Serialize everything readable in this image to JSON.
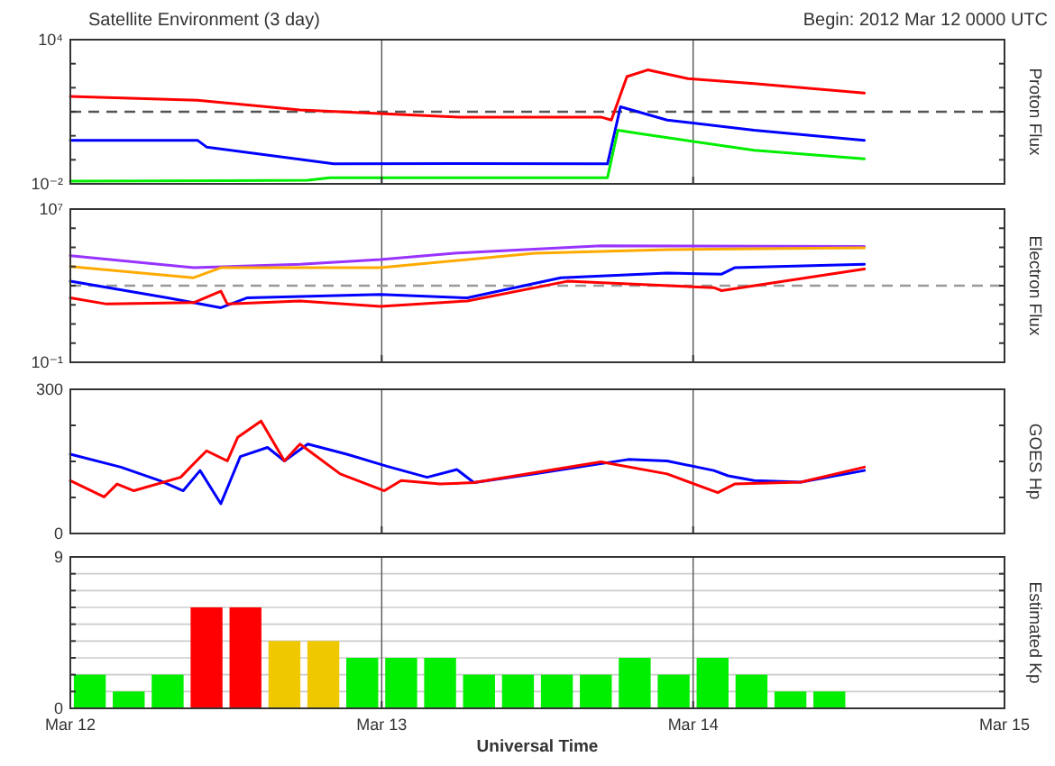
{
  "chart_data": [
    {
      "type": "line",
      "title": "Satellite Environment (3 day)",
      "annotations": [
        "Begin: 2012 Mar 12 0000 UTC"
      ],
      "ylabel": "Proton Flux",
      "log": "y",
      "grid": "x",
      "tick_labels": "y",
      "xlim": [
        "2012-03-12",
        "2012-03-15"
      ],
      "xticks": [
        {
          "value": "2012-03-12",
          "label": null
        },
        {
          "value": "2012-03-13",
          "label": null
        },
        {
          "value": "2012-03-14",
          "label": null
        },
        {
          "value": "2012-03-15",
          "label": null
        }
      ],
      "ylim": [
        0.01,
        10000
      ],
      "yticks": [
        {
          "value": 0.01,
          "label": "10⁻²"
        },
        {
          "value": 0.1,
          "label": null
        },
        {
          "value": 1,
          "label": null
        },
        {
          "value": 10,
          "label": null
        },
        {
          "value": 100,
          "label": null
        },
        {
          "value": 1000,
          "label": null
        },
        {
          "value": 10000,
          "label": "10⁴"
        }
      ],
      "ref_lines": [
        {
          "axis": "y",
          "value": 10,
          "color": "#555555",
          "line_style": "dashed"
        }
      ],
      "series": [
        {
          "color": "#ff0000",
          "x": [
            "2012-03-12T00:00",
            "2012-03-12T09:48",
            "2012-03-12T17:42",
            "2012-03-13T06:00",
            "2012-03-13T16:54",
            "2012-03-13T17:42",
            "2012-03-13T18:54",
            "2012-03-13T20:30",
            "2012-03-13T23:36",
            "2012-03-14T04:42",
            "2012-03-14T13:12"
          ],
          "values": [
            43,
            30,
            12,
            6,
            6,
            4.5,
            290,
            550,
            240,
            150,
            60
          ]
        },
        {
          "color": "#0000ff",
          "x": [
            "2012-03-12T00:00",
            "2012-03-12T09:48",
            "2012-03-12T10:30",
            "2012-03-12T20:18",
            "2012-03-13T06:00",
            "2012-03-13T17:24",
            "2012-03-13T18:24",
            "2012-03-13T22:00",
            "2012-03-14T04:42",
            "2012-03-14T13:12"
          ],
          "values": [
            0.65,
            0.65,
            0.34,
            0.068,
            0.07,
            0.068,
            16,
            4.5,
            1.7,
            0.65
          ]
        },
        {
          "color": "#00ee00",
          "x": [
            "2012-03-12T00:00",
            "2012-03-12T18:18",
            "2012-03-12T20:00",
            "2012-03-13T17:24",
            "2012-03-13T18:12",
            "2012-03-13T20:00",
            "2012-03-14T04:42",
            "2012-03-14T13:12"
          ],
          "values": [
            0.013,
            0.014,
            0.018,
            0.018,
            1.7,
            1.2,
            0.25,
            0.11
          ]
        }
      ]
    },
    {
      "type": "line",
      "ylabel": "Electron Flux",
      "log": "y",
      "grid": "x",
      "tick_labels": "y",
      "xlim": [
        "2012-03-12",
        "2012-03-15"
      ],
      "xticks": [
        {
          "value": "2012-03-12",
          "label": null
        },
        {
          "value": "2012-03-13",
          "label": null
        },
        {
          "value": "2012-03-14",
          "label": null
        },
        {
          "value": "2012-03-15",
          "label": null
        }
      ],
      "ylim": [
        0.1,
        10000000
      ],
      "yticks": [
        {
          "value": 0.1,
          "label": "10⁻¹"
        },
        {
          "value": 1,
          "label": null
        },
        {
          "value": 10,
          "label": null
        },
        {
          "value": 100,
          "label": null
        },
        {
          "value": 1000,
          "label": null
        },
        {
          "value": 10000,
          "label": null
        },
        {
          "value": 100000,
          "label": null
        },
        {
          "value": 1000000,
          "label": null
        },
        {
          "value": 10000000,
          "label": "10⁷"
        }
      ],
      "ref_lines": [
        {
          "axis": "y",
          "value": 1000,
          "color": "#999999",
          "line_style": "dashed"
        }
      ],
      "series": [
        {
          "color": "#9933ff",
          "x": [
            "2012-03-12T00:00",
            "2012-03-12T09:30",
            "2012-03-12T17:42",
            "2012-03-12T23:54",
            "2012-03-13T05:36",
            "2012-03-13T16:54",
            "2012-03-14T13:12"
          ],
          "values": [
            37000,
            8700,
            13000,
            23000,
            50000,
            120000,
            110000
          ]
        },
        {
          "color": "#ffaa00",
          "x": [
            "2012-03-12T00:00",
            "2012-03-12T09:30",
            "2012-03-12T11:36",
            "2012-03-12T23:54",
            "2012-03-13T11:48",
            "2012-03-13T22:00",
            "2012-03-14T13:12"
          ],
          "values": [
            10000,
            2600,
            8700,
            8700,
            50000,
            76000,
            95000
          ]
        },
        {
          "color": "#0000ff",
          "x": [
            "2012-03-12T00:00",
            "2012-03-12T07:30",
            "2012-03-12T11:36",
            "2012-03-12T13:36",
            "2012-03-12T23:54",
            "2012-03-13T06:36",
            "2012-03-13T13:48",
            "2012-03-13T22:00",
            "2012-03-14T02:12",
            "2012-03-14T03:12",
            "2012-03-14T13:12"
          ],
          "values": [
            1700,
            230,
            71,
            230,
            350,
            230,
            2600,
            4600,
            4000,
            8700,
            13000
          ]
        },
        {
          "color": "#ff0000",
          "x": [
            "2012-03-12T00:00",
            "2012-03-12T02:48",
            "2012-03-12T09:30",
            "2012-03-12T11:36",
            "2012-03-12T12:06",
            "2012-03-12T17:42",
            "2012-03-12T23:54",
            "2012-03-13T06:36",
            "2012-03-13T14:18",
            "2012-03-14T01:36",
            "2012-03-14T02:12",
            "2012-03-14T13:12"
          ],
          "values": [
            230,
            110,
            130,
            520,
            110,
            160,
            83,
            160,
            1700,
            790,
            550,
            7400
          ]
        }
      ]
    },
    {
      "type": "line",
      "ylabel": "GOES Hp",
      "grid": "x",
      "tick_labels": "y",
      "xlim": [
        "2012-03-12",
        "2012-03-15"
      ],
      "xticks": [
        {
          "value": "2012-03-12",
          "label": null
        },
        {
          "value": "2012-03-13",
          "label": null
        },
        {
          "value": "2012-03-14",
          "label": null
        },
        {
          "value": "2012-03-15",
          "label": null
        }
      ],
      "ylim": [
        0,
        300
      ],
      "yticks": [
        0,
        {
          "value": 75,
          "label": null
        },
        {
          "value": 150,
          "label": null
        },
        {
          "value": 225,
          "label": null
        },
        300
      ],
      "series": [
        {
          "color": "#0000ff",
          "x": [
            "2012-03-12T00:00",
            "2012-03-12T03:54",
            "2012-03-12T06:54",
            "2012-03-12T08:42",
            "2012-03-12T10:00",
            "2012-03-12T11:36",
            "2012-03-12T13:06",
            "2012-03-12T15:12",
            "2012-03-12T16:30",
            "2012-03-12T18:18",
            "2012-03-12T21:18",
            "2012-03-13T00:24",
            "2012-03-13T03:30",
            "2012-03-13T05:48",
            "2012-03-13T07:06",
            "2012-03-13T11:48",
            "2012-03-13T19:00",
            "2012-03-13T22:00",
            "2012-03-14T01:36",
            "2012-03-14T02:42",
            "2012-03-14T04:42",
            "2012-03-14T08:18",
            "2012-03-14T13:12"
          ],
          "values": [
            165,
            138,
            110,
            89,
            131,
            62,
            160,
            179,
            151,
            186,
            165,
            140,
            117,
            133,
            106,
            124,
            154,
            151,
            131,
            120,
            110,
            107,
            131
          ]
        },
        {
          "color": "#ff0000",
          "x": [
            "2012-03-12T00:00",
            "2012-03-12T02:36",
            "2012-03-12T03:36",
            "2012-03-12T04:54",
            "2012-03-12T08:30",
            "2012-03-12T09:30",
            "2012-03-12T10:30",
            "2012-03-12T12:06",
            "2012-03-12T12:54",
            "2012-03-12T14:42",
            "2012-03-12T16:30",
            "2012-03-12T17:42",
            "2012-03-12T20:48",
            "2012-03-13T00:12",
            "2012-03-13T01:30",
            "2012-03-13T04:30",
            "2012-03-13T07:06",
            "2012-03-13T16:54",
            "2012-03-13T22:00",
            "2012-03-14T01:54",
            "2012-03-14T03:12",
            "2012-03-14T08:18",
            "2012-03-14T13:12"
          ],
          "values": [
            110,
            76,
            103,
            89,
            117,
            145,
            172,
            151,
            200,
            234,
            151,
            186,
            124,
            89,
            110,
            103,
            106,
            149,
            124,
            85,
            103,
            107,
            138
          ]
        }
      ]
    },
    {
      "type": "bar",
      "ylabel": "Estimated Kp",
      "xlabel": "Universal Time",
      "grid": true,
      "xlim": [
        "2012-03-12",
        "2012-03-15"
      ],
      "xticks": [
        {
          "value": "2012-03-12",
          "label": "Mar 12"
        },
        {
          "value": "2012-03-13",
          "label": "Mar 13"
        },
        {
          "value": "2012-03-14",
          "label": "Mar 14"
        },
        {
          "value": "2012-03-15",
          "label": "Mar 15"
        }
      ],
      "ylim": [
        0,
        9
      ],
      "yticks": [
        0,
        {
          "value": 1,
          "label": null
        },
        {
          "value": 2,
          "label": null
        },
        {
          "value": 3,
          "label": null
        },
        {
          "value": 4,
          "label": null
        },
        {
          "value": 5,
          "label": null
        },
        {
          "value": 6,
          "label": null
        },
        {
          "value": 7,
          "label": null
        },
        {
          "value": 8,
          "label": null
        },
        9
      ],
      "x": [
        "2012-03-12T01:30",
        "2012-03-12T04:30",
        "2012-03-12T07:30",
        "2012-03-12T10:30",
        "2012-03-12T13:30",
        "2012-03-12T16:30",
        "2012-03-12T19:30",
        "2012-03-12T22:30",
        "2012-03-13T01:30",
        "2012-03-13T04:30",
        "2012-03-13T07:30",
        "2012-03-13T10:30",
        "2012-03-13T13:30",
        "2012-03-13T16:30",
        "2012-03-13T19:30",
        "2012-03-13T22:30",
        "2012-03-14T01:30",
        "2012-03-14T04:30",
        "2012-03-14T07:30",
        "2012-03-14T10:30"
      ],
      "values": [
        2,
        1,
        2,
        6,
        6,
        4,
        4,
        3,
        3,
        3,
        2,
        2,
        2,
        2,
        3,
        2,
        3,
        2,
        1,
        1
      ],
      "colors": [
        "#00ee00",
        "#00ee00",
        "#00ee00",
        "#ff0000",
        "#ff0000",
        "#f0c800",
        "#f0c800",
        "#00ee00",
        "#00ee00",
        "#00ee00",
        "#00ee00",
        "#00ee00",
        "#00ee00",
        "#00ee00",
        "#00ee00",
        "#00ee00",
        "#00ee00",
        "#00ee00",
        "#00ee00",
        "#00ee00"
      ]
    }
  ]
}
